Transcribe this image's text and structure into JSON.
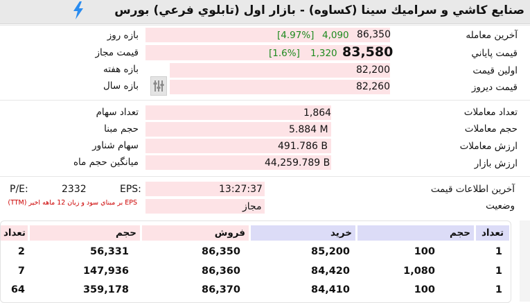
{
  "header": {
    "title": "صنايع کاشي و سراميك سينا (کساوه) - بازار اول (تابلوي فرعي) بورس"
  },
  "colors": {
    "cell_pink": "#fde3e6",
    "cell_lavender": "#dcdcf7",
    "positive_green": "#1e8a1e",
    "note_red": "#cc0000"
  },
  "price": {
    "last_trade_label": "آخرين معامله",
    "last_trade_value": "86,350",
    "last_trade_change": "4,090",
    "last_trade_pct": "[4.97%]",
    "closing_label": "قيمت پاياني",
    "closing_value": "83,580",
    "closing_change": "1,320",
    "closing_pct": "[1.6%]",
    "first_label": "اولين قيمت",
    "first_value": "82,200",
    "yesterday_label": "قيمت ديروز",
    "yesterday_value": "82,260",
    "day_range_label": "بازه روز",
    "allowed_price_label": "قيمت مجاز",
    "week_range_label": "بازه هفته",
    "year_range_label": "بازه سال"
  },
  "trades": {
    "count_label": "تعداد معاملات",
    "count_value": "1,864",
    "volume_label": "حجم معاملات",
    "volume_value": "5.884 M",
    "value_label": "ارزش معاملات",
    "value_value": "491.786 B",
    "market_value_label": "ارزش بازار",
    "market_value_value": "44,259.789 B",
    "shares_label": "تعداد سهام",
    "base_volume_label": "حجم مبنا",
    "float_label": "سهام شناور",
    "avg_month_volume_label": "ميانگين حجم ماه"
  },
  "info": {
    "last_price_info_label": "آخرين اطلاعات قيمت",
    "last_price_info_time": "13:27:37",
    "status_label": "وضعيت",
    "status_value": "مجاز",
    "eps_label": "EPS:",
    "eps_value": "2332",
    "pe_label": "P/E:",
    "eps_note": "EPS بر مبناي سود و زيان 12 ماهه اخير (TTM)"
  },
  "orderbook": {
    "headers": {
      "buy_count": "تعداد",
      "buy_volume": "حجم",
      "buy_price": "خريد",
      "sell_price": "فروش",
      "sell_volume": "حجم",
      "sell_count": "تعداد"
    },
    "rows": [
      {
        "buy_count": "1",
        "buy_volume": "100",
        "buy_price": "85,200",
        "sell_price": "86,350",
        "sell_volume": "56,331",
        "sell_count": "2"
      },
      {
        "buy_count": "1",
        "buy_volume": "1,080",
        "buy_price": "84,420",
        "sell_price": "86,360",
        "sell_volume": "147,936",
        "sell_count": "7"
      },
      {
        "buy_count": "1",
        "buy_volume": "100",
        "buy_price": "84,410",
        "sell_price": "86,370",
        "sell_volume": "359,178",
        "sell_count": "64"
      }
    ]
  }
}
